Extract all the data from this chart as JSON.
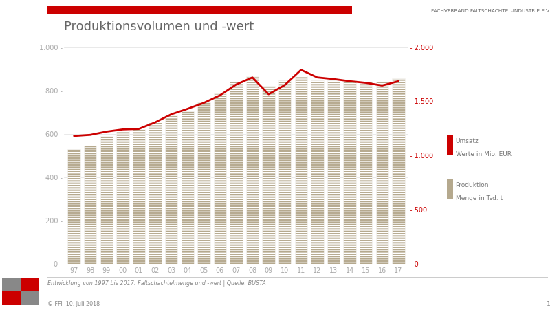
{
  "year_labels": [
    "97",
    "98",
    "99",
    "00",
    "01",
    "02",
    "03",
    "04",
    "05",
    "06",
    "07",
    "08",
    "09",
    "10",
    "11",
    "12",
    "13",
    "14",
    "15",
    "16",
    "17"
  ],
  "production": [
    530,
    545,
    590,
    615,
    620,
    655,
    685,
    705,
    745,
    785,
    840,
    865,
    820,
    845,
    870,
    845,
    845,
    845,
    840,
    840,
    855
  ],
  "umsatz": [
    1180,
    1190,
    1220,
    1240,
    1245,
    1305,
    1380,
    1430,
    1485,
    1555,
    1655,
    1720,
    1565,
    1650,
    1790,
    1720,
    1705,
    1685,
    1670,
    1645,
    1685
  ],
  "title": "Produktionsvolumen und -wert",
  "left_ylim": [
    0,
    1000
  ],
  "right_ylim": [
    0,
    2000
  ],
  "left_yticks": [
    0,
    200,
    400,
    600,
    800,
    1000
  ],
  "right_yticks": [
    0,
    500,
    1000,
    1500,
    2000
  ],
  "bar_color": "#b5a98e",
  "line_color": "#cc0000",
  "legend_umsatz_line1": "Umsatz",
  "legend_umsatz_line2": "Werte in Mio. EUR",
  "legend_prod_line1": "Produktion",
  "legend_prod_line2": "Menge in Tsd. t",
  "header_text": "FACHVERBAND FALTSCHACHTEL-INDUSTRIE E.V.",
  "footer_text": "Entwicklung von 1997 bis 2017: Faltschachtelmenge und -wert | Quelle: BUSTA",
  "copyright_text": "© FFI  10. Juli 2018",
  "page_num": "1",
  "header_bar_color": "#cc0000",
  "bg_color": "#ffffff",
  "tick_color": "#aaaaaa",
  "title_color": "#666666"
}
